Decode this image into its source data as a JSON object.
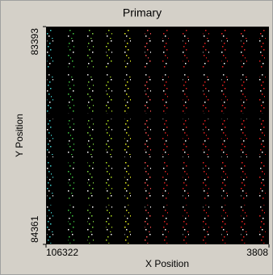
{
  "chart_data": {
    "type": "scatter",
    "title": "Primary",
    "xlabel": "X Position",
    "ylabel": "Y Position",
    "xlim": [
      106322,
      3808
    ],
    "ylim": [
      84361,
      83393
    ],
    "xticks": [
      106322,
      3808
    ],
    "yticks": [
      83393,
      84361
    ],
    "series": [
      {
        "color": "#40d0d0",
        "x": [
          104465,
          104465,
          104465,
          104465,
          104465
        ],
        "values": [
          83493,
          83691,
          83888,
          84081,
          84271
        ]
      },
      {
        "color": "#40c840",
        "x": [
          94808,
          94808,
          94808,
          94808,
          94808
        ],
        "values": [
          83493,
          83691,
          83888,
          84081,
          84271
        ]
      },
      {
        "color": "#80d840",
        "x": [
          85895,
          85895,
          85895,
          85895,
          85895
        ],
        "values": [
          83493,
          83691,
          83888,
          84081,
          84271
        ]
      },
      {
        "color": "#b0e020",
        "x": [
          77353,
          77353,
          77353,
          77353,
          77353
        ],
        "values": [
          83493,
          83691,
          83888,
          84081,
          84271
        ]
      },
      {
        "color": "#e8f020",
        "x": [
          68810,
          68810,
          68810,
          68810,
          68810
        ],
        "values": [
          83493,
          83691,
          83888,
          84081,
          84271
        ]
      },
      {
        "color": "#ff5050",
        "x": [
          59526,
          59526,
          59526,
          59526,
          59526
        ],
        "values": [
          83493,
          83691,
          83888,
          84081,
          84271
        ]
      },
      {
        "color": "#e02020",
        "x": [
          51355,
          51355,
          51355,
          51355,
          51355
        ],
        "values": [
          83493,
          83691,
          83888,
          84081,
          84271
        ]
      },
      {
        "color": "#e02020",
        "x": [
          42070,
          42070,
          42070,
          42070,
          42070
        ],
        "values": [
          83493,
          83691,
          83888,
          84081,
          84271
        ]
      },
      {
        "color": "#e82020",
        "x": [
          32784,
          32784,
          32784,
          32784,
          32784
        ],
        "values": [
          83493,
          83691,
          83888,
          84081,
          84271
        ]
      },
      {
        "color": "#f02020",
        "x": [
          24242,
          24242,
          24242,
          24242,
          24242
        ],
        "values": [
          83493,
          83691,
          83888,
          84081,
          84271
        ]
      },
      {
        "color": "#f02020",
        "x": [
          15328,
          15328,
          15328,
          15328,
          15328
        ],
        "values": [
          83493,
          83691,
          83888,
          84081,
          84271
        ]
      },
      {
        "color": "#f02020",
        "x": [
          6786,
          6786,
          6786,
          6786,
          6786
        ],
        "values": [
          83493,
          83691,
          83888,
          84081,
          84271
        ]
      }
    ]
  }
}
